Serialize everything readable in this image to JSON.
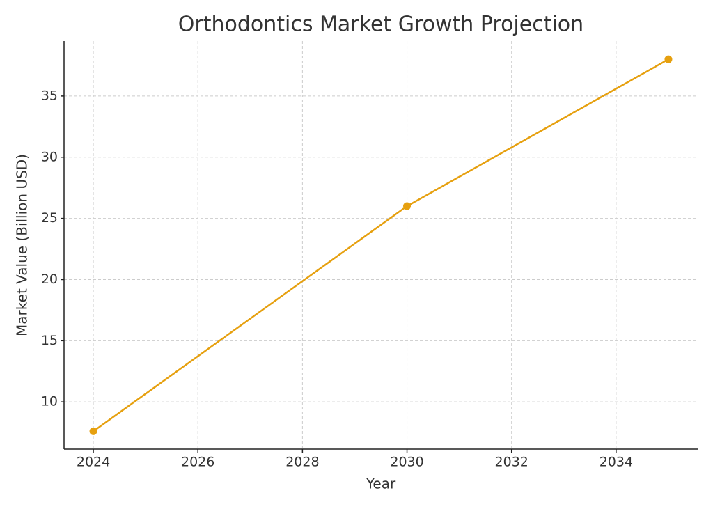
{
  "chart_data": {
    "type": "line",
    "title": "Orthodontics Market Growth Projection",
    "x_label": "Year",
    "y_label": "Market Value (Billion USD)",
    "x": [
      2024,
      2030,
      2035
    ],
    "series": [
      {
        "color": "#e6a00f",
        "values": [
          7.6,
          26,
          38
        ]
      }
    ],
    "xlim": [
      2023.44,
      2035.56
    ],
    "xticks": [
      2024,
      2026,
      2028,
      2030,
      2032,
      2034
    ],
    "ylim": [
      6.14,
      39.49
    ],
    "yticks": [
      10,
      15,
      20,
      25,
      30,
      35
    ],
    "grid": true
  }
}
